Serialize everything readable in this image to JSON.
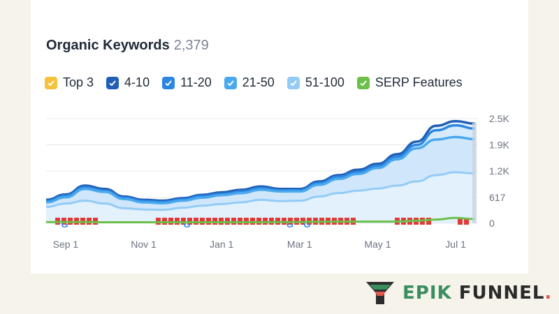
{
  "header": {
    "title": "Organic Keywords",
    "count": "2,379"
  },
  "legend": [
    {
      "label": "Top 3",
      "color": "#f5c23e"
    },
    {
      "label": "4-10",
      "color": "#1f5fb5"
    },
    {
      "label": "11-20",
      "color": "#2b86e0"
    },
    {
      "label": "21-50",
      "color": "#4aa9ee"
    },
    {
      "label": "51-100",
      "color": "#93cbf6"
    },
    {
      "label": "SERP Features",
      "color": "#6cc04a"
    }
  ],
  "brand": {
    "name_part1": "EPIK",
    "name_part2": " FUNNEL",
    "dot": "."
  },
  "chart_data": {
    "type": "area",
    "x_ticks": [
      "Sep 1",
      "Nov 1",
      "Jan 1",
      "Mar 1",
      "May 1",
      "Jul 1"
    ],
    "y_ticks": [
      "0",
      "617",
      "1.2K",
      "1.9K",
      "2.5K"
    ],
    "ylim": [
      0,
      2500
    ],
    "grid": true,
    "x": [
      "Aug 15",
      "Sep 1",
      "Sep 15",
      "Oct 1",
      "Oct 15",
      "Nov 1",
      "Nov 15",
      "Dec 1",
      "Dec 15",
      "Jan 1",
      "Jan 15",
      "Feb 1",
      "Feb 15",
      "Mar 1",
      "Mar 15",
      "Apr 1",
      "Apr 15",
      "May 1",
      "May 15",
      "Jun 1",
      "Jun 15",
      "Jul 1",
      "Jul 15"
    ],
    "series": [
      {
        "name": "4-10",
        "values": [
          560,
          690,
          900,
          820,
          640,
          560,
          540,
          600,
          680,
          740,
          800,
          880,
          820,
          820,
          1000,
          1150,
          1280,
          1420,
          1650,
          1950,
          2330,
          2440,
          2380
        ]
      },
      {
        "name": "11-20",
        "values": [
          530,
          660,
          860,
          780,
          610,
          530,
          510,
          570,
          650,
          700,
          760,
          840,
          790,
          790,
          960,
          1110,
          1230,
          1370,
          1590,
          1870,
          2220,
          2340,
          2260
        ]
      },
      {
        "name": "21-50",
        "values": [
          500,
          620,
          820,
          750,
          580,
          500,
          480,
          540,
          610,
          670,
          720,
          800,
          760,
          760,
          920,
          1060,
          1180,
          1320,
          1530,
          1790,
          2000,
          2060,
          2010
        ]
      },
      {
        "name": "51-100",
        "values": [
          390,
          470,
          540,
          470,
          360,
          330,
          320,
          370,
          420,
          460,
          500,
          560,
          530,
          540,
          640,
          720,
          780,
          830,
          900,
          1000,
          1150,
          1220,
          1190
        ]
      },
      {
        "name": "SERP Features",
        "values": [
          30,
          30,
          30,
          25,
          25,
          25,
          25,
          25,
          25,
          25,
          25,
          25,
          30,
          30,
          35,
          40,
          40,
          40,
          40,
          60,
          90,
          130,
          100
        ]
      }
    ]
  }
}
